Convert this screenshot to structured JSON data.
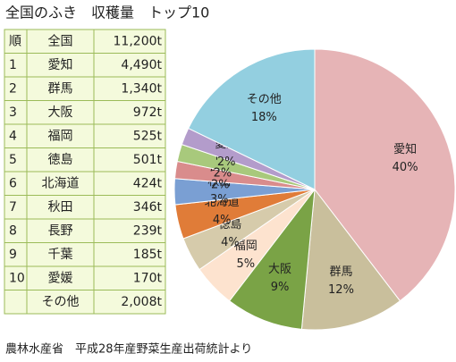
{
  "title": "全国のふき　収穫量　トップ10",
  "table": {
    "header": [
      "順",
      "全国",
      "11,200t"
    ],
    "rows": [
      [
        "1",
        "愛知",
        "4,490t"
      ],
      [
        "2",
        "群馬",
        "1,340t"
      ],
      [
        "3",
        "大阪",
        "972t"
      ],
      [
        "4",
        "福岡",
        "525t"
      ],
      [
        "5",
        "徳島",
        "501t"
      ],
      [
        "6",
        "北海道",
        "424t"
      ],
      [
        "7",
        "秋田",
        "346t"
      ],
      [
        "8",
        "長野",
        "239t"
      ],
      [
        "9",
        "千葉",
        "185t"
      ],
      [
        "10",
        "愛媛",
        "170t"
      ]
    ],
    "footer": [
      "その他",
      "2,008t"
    ]
  },
  "chart_data": {
    "type": "pie",
    "categories": [
      "愛知",
      "群馬",
      "大阪",
      "福岡",
      "徳島",
      "北海道",
      "秋田",
      "長野",
      "千葉",
      "愛媛",
      "その他"
    ],
    "values": [
      40,
      12,
      9,
      5,
      4,
      4,
      3,
      2,
      2,
      2,
      18
    ],
    "value_labels": [
      "40%",
      "12%",
      "9%",
      "5%",
      "4%",
      "4%",
      "3%",
      "2%",
      "2%",
      "2%",
      "18%"
    ],
    "colors": [
      "#e6b4b6",
      "#c9bf9c",
      "#7aa346",
      "#fde3cf",
      "#d6cbab",
      "#e07c38",
      "#7a9fd3",
      "#d98c8c",
      "#a8c97c",
      "#b39ccb",
      "#93cfe0"
    ]
  },
  "source": "農林水産省　平成28年産野菜生産出荷統計より"
}
